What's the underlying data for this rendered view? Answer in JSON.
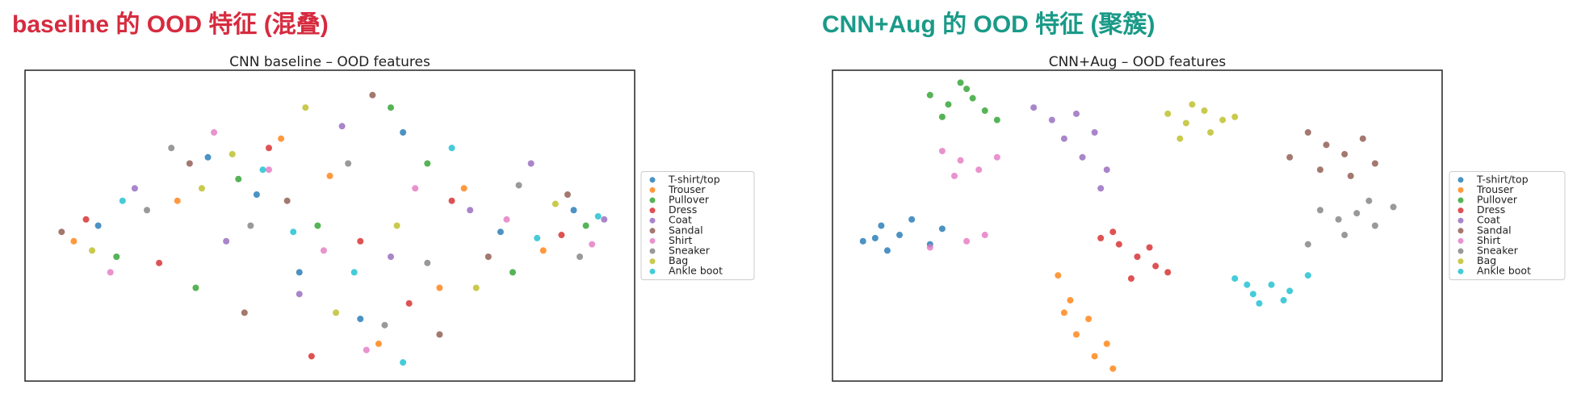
{
  "headings": [
    "baseline 的 OOD 特征 (混叠)",
    "CNN+Aug 的 OOD 特征 (聚簇)"
  ],
  "chart_data": [
    {
      "type": "scatter",
      "title": "CNN baseline – OOD features",
      "xlim": [
        0,
        100
      ],
      "ylim": [
        0,
        100
      ],
      "legend": "right",
      "series": [
        {
          "name": "T-shirt/top",
          "color": "#1f77b4",
          "x": [
            12,
            30,
            45,
            62,
            78,
            90,
            55,
            38
          ],
          "values": [
            50,
            72,
            35,
            80,
            48,
            55,
            20,
            60
          ]
        },
        {
          "name": "Trouser",
          "color": "#ff7f0e",
          "x": [
            8,
            25,
            50,
            68,
            85,
            42,
            72,
            58
          ],
          "values": [
            45,
            58,
            66,
            30,
            42,
            78,
            62,
            12
          ]
        },
        {
          "name": "Pullover",
          "color": "#2ca02c",
          "x": [
            15,
            35,
            48,
            60,
            80,
            92,
            28,
            66
          ],
          "values": [
            40,
            65,
            50,
            88,
            35,
            50,
            30,
            70
          ]
        },
        {
          "name": "Dress",
          "color": "#d62728",
          "x": [
            10,
            22,
            40,
            55,
            70,
            88,
            63,
            47
          ],
          "values": [
            52,
            38,
            75,
            45,
            58,
            47,
            25,
            8
          ]
        },
        {
          "name": "Coat",
          "color": "#9467bd",
          "x": [
            18,
            33,
            52,
            73,
            83,
            95,
            45,
            60
          ],
          "values": [
            62,
            45,
            82,
            55,
            70,
            52,
            28,
            40
          ]
        },
        {
          "name": "Sandal",
          "color": "#8c564b",
          "x": [
            6,
            27,
            43,
            57,
            76,
            89,
            36,
            68
          ],
          "values": [
            48,
            70,
            58,
            92,
            40,
            60,
            22,
            15
          ]
        },
        {
          "name": "Shirt",
          "color": "#e377c2",
          "x": [
            14,
            31,
            49,
            64,
            79,
            93,
            40,
            56
          ],
          "values": [
            35,
            80,
            42,
            62,
            52,
            44,
            68,
            10
          ]
        },
        {
          "name": "Sneaker",
          "color": "#7f7f7f",
          "x": [
            20,
            37,
            53,
            66,
            81,
            91,
            24,
            59
          ],
          "values": [
            55,
            50,
            70,
            38,
            63,
            40,
            75,
            18
          ]
        },
        {
          "name": "Bag",
          "color": "#bcbd22",
          "x": [
            11,
            29,
            46,
            61,
            74,
            87,
            51,
            34
          ],
          "values": [
            42,
            62,
            88,
            50,
            30,
            57,
            22,
            73
          ]
        },
        {
          "name": "Ankle boot",
          "color": "#17becf",
          "x": [
            16,
            39,
            54,
            70,
            84,
            94,
            62,
            44
          ],
          "values": [
            58,
            68,
            35,
            75,
            46,
            53,
            6,
            48
          ]
        }
      ]
    },
    {
      "type": "scatter",
      "title": "CNN+Aug – OOD features",
      "xlim": [
        0,
        100
      ],
      "ylim": [
        0,
        100
      ],
      "legend": "right",
      "series": [
        {
          "name": "T-shirt/top",
          "color": "#1f77b4",
          "x": [
            5,
            8,
            11,
            13,
            16,
            9,
            18,
            7
          ],
          "values": [
            45,
            50,
            47,
            52,
            44,
            42,
            49,
            46
          ]
        },
        {
          "name": "Trouser",
          "color": "#ff7f0e",
          "x": [
            37,
            39,
            42,
            45,
            43,
            40,
            38,
            46
          ],
          "values": [
            34,
            26,
            20,
            12,
            8,
            15,
            22,
            4
          ]
        },
        {
          "name": "Pullover",
          "color": "#2ca02c",
          "x": [
            16,
            19,
            22,
            25,
            18,
            23,
            27,
            21
          ],
          "values": [
            92,
            89,
            94,
            87,
            85,
            91,
            84,
            96
          ]
        },
        {
          "name": "Dress",
          "color": "#d62728",
          "x": [
            44,
            47,
            50,
            53,
            49,
            46,
            52,
            55
          ],
          "values": [
            46,
            44,
            40,
            37,
            33,
            48,
            43,
            35
          ]
        },
        {
          "name": "Coat",
          "color": "#9467bd",
          "x": [
            33,
            36,
            40,
            43,
            38,
            45,
            44,
            41
          ],
          "values": [
            88,
            84,
            86,
            80,
            78,
            68,
            62,
            72
          ]
        },
        {
          "name": "Sandal",
          "color": "#8c564b",
          "x": [
            78,
            81,
            84,
            87,
            89,
            80,
            85,
            75
          ],
          "values": [
            80,
            76,
            73,
            78,
            70,
            68,
            66,
            72
          ]
        },
        {
          "name": "Shirt",
          "color": "#e377c2",
          "x": [
            18,
            21,
            24,
            27,
            22,
            16,
            25,
            20
          ],
          "values": [
            74,
            71,
            68,
            72,
            45,
            43,
            47,
            66
          ]
        },
        {
          "name": "Sneaker",
          "color": "#7f7f7f",
          "x": [
            80,
            83,
            86,
            89,
            92,
            84,
            78,
            88
          ],
          "values": [
            55,
            52,
            54,
            50,
            56,
            47,
            44,
            58
          ]
        },
        {
          "name": "Bag",
          "color": "#bcbd22",
          "x": [
            55,
            58,
            61,
            64,
            57,
            62,
            66,
            59
          ],
          "values": [
            86,
            83,
            87,
            84,
            78,
            80,
            85,
            89
          ]
        },
        {
          "name": "Ankle boot",
          "color": "#17becf",
          "x": [
            66,
            69,
            72,
            75,
            78,
            70,
            74,
            68
          ],
          "values": [
            33,
            28,
            31,
            29,
            34,
            25,
            26,
            31
          ]
        }
      ]
    }
  ]
}
